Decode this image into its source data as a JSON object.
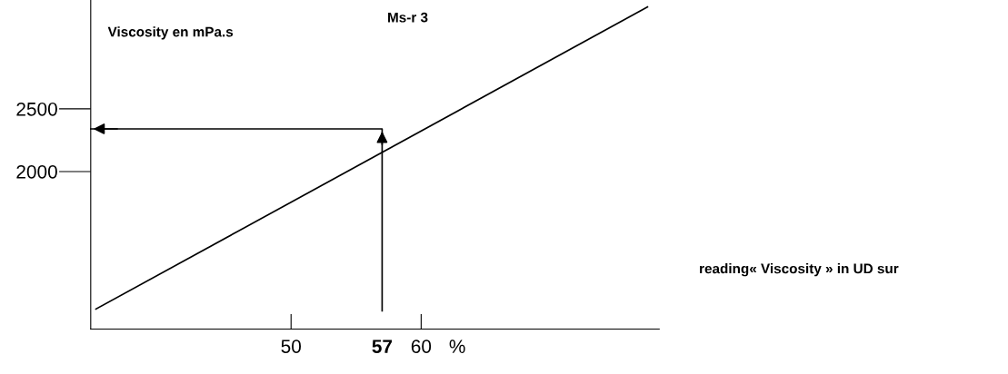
{
  "chart_data": {
    "type": "line",
    "ylabel": "Viscosity en mPa.s",
    "xlabel": "reading« Viscosity » in UD sur",
    "series": [
      {
        "name": "Ms-r 3",
        "color": "#000000",
        "x": [
          35,
          77.4
        ],
        "values": [
          903,
          3312
        ]
      },
      {
        "color": "#000000",
        "x": [
          57,
          57,
          34.6
        ],
        "values": [
          888,
          2340,
          2340
        ]
      }
    ],
    "xlim": [
      34.6,
      78.3
    ],
    "ylim": [
      743,
      3368
    ],
    "xticks": [
      50,
      {
        "value": 57,
        "label": "57"
      },
      60
    ],
    "yticks": [
      2000,
      2500
    ],
    "annotations": [
      "%"
    ],
    "marker": "none",
    "grid": false,
    "legend": false
  }
}
